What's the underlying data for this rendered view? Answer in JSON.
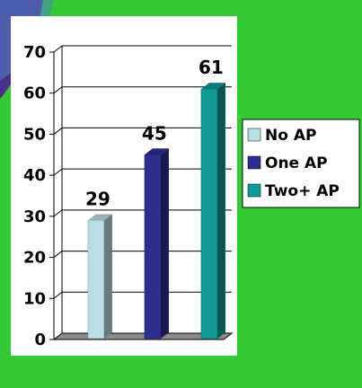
{
  "chart_data": {
    "type": "bar",
    "categories": [
      "No AP",
      "One AP",
      "Two+ AP"
    ],
    "values": [
      29,
      45,
      61
    ],
    "data_labels": [
      "29",
      "45",
      "61"
    ],
    "ylim": [
      0,
      70
    ],
    "yticks": [
      "0",
      "10",
      "20",
      "30",
      "40",
      "50",
      "60",
      "70"
    ],
    "grid": true,
    "legend": "right",
    "series_colors": [
      "#b7dfe3",
      "#2e2e8f",
      "#109a98"
    ],
    "title": "",
    "xlabel": "",
    "ylabel": ""
  },
  "colors": {
    "background": "#36c936",
    "plot_panel": "#ffffff",
    "decoration_purple": "#4b2f8d",
    "decoration_blue": "#4f7fc2"
  }
}
